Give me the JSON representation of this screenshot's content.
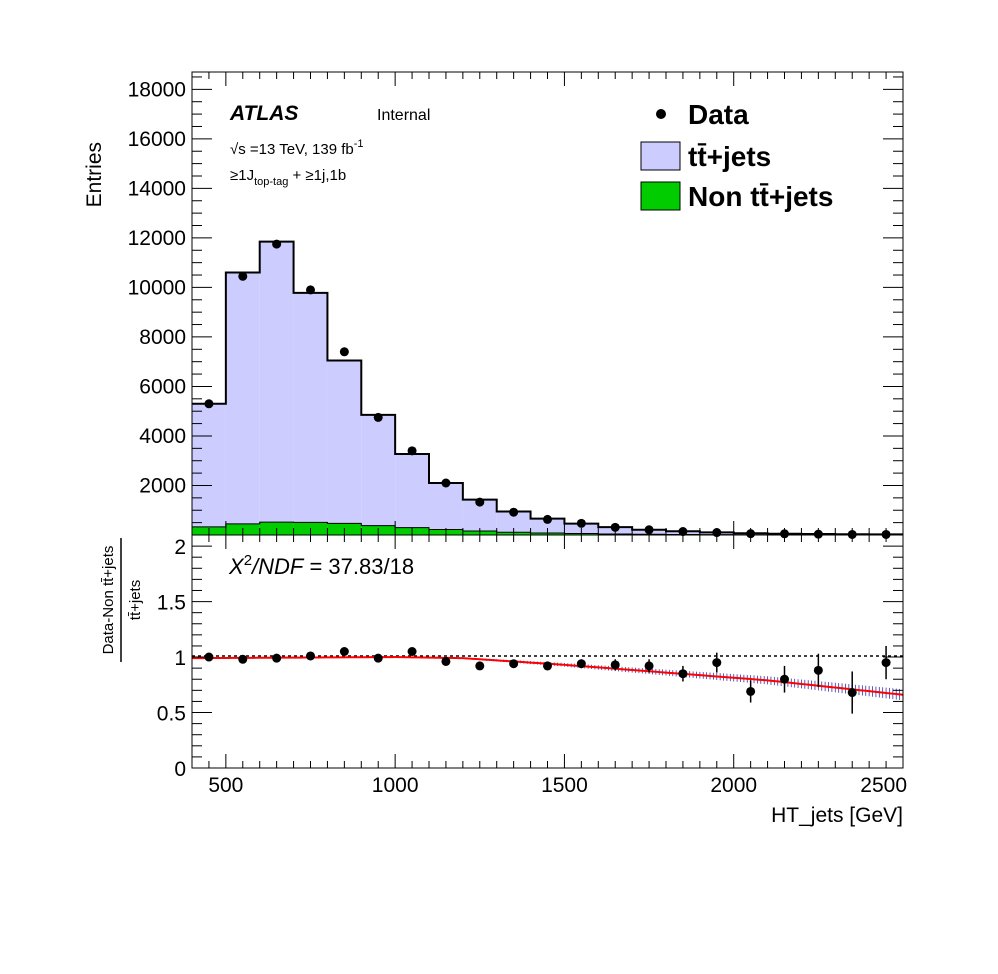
{
  "chart_data": [
    {
      "type": "bar",
      "panel": "main",
      "ylabel": "Entries",
      "xlim": [
        400,
        2500
      ],
      "ylim": [
        0,
        18700
      ],
      "y_ticks": [
        2000,
        4000,
        6000,
        8000,
        10000,
        12000,
        14000,
        16000,
        18000
      ],
      "bin_edges": [
        400,
        500,
        600,
        700,
        800,
        900,
        1000,
        1100,
        1200,
        1300,
        1400,
        1500,
        1600,
        1700,
        1800,
        1900,
        2000,
        2100,
        2200,
        2300,
        2400,
        2500
      ],
      "series": [
        {
          "name": "Non tt̅+jets",
          "kind": "stacked",
          "color": "#00cc00",
          "values": [
            330,
            450,
            520,
            510,
            470,
            380,
            300,
            220,
            160,
            110,
            80,
            60,
            40,
            30,
            20,
            15,
            10,
            8,
            6,
            5,
            4
          ]
        },
        {
          "name": "tt̅+jets",
          "kind": "stacked",
          "color": "#ccccff",
          "values": [
            4970,
            10150,
            11330,
            9270,
            6580,
            4470,
            2970,
            1880,
            1270,
            840,
            580,
            400,
            280,
            180,
            130,
            90,
            60,
            45,
            32,
            25,
            20
          ]
        },
        {
          "name": "Data",
          "kind": "points",
          "color": "#000000",
          "x": [
            450,
            550,
            650,
            750,
            850,
            950,
            1050,
            1150,
            1250,
            1350,
            1450,
            1550,
            1650,
            1750,
            1850,
            1950,
            2050,
            2150,
            2250,
            2350,
            2450
          ],
          "values": [
            5300,
            10450,
            11750,
            9900,
            7400,
            4750,
            3400,
            2100,
            1330,
            920,
            630,
            470,
            310,
            210,
            140,
            100,
            55,
            50,
            35,
            22,
            22
          ]
        }
      ],
      "annotations": {
        "atlas": "ATLAS",
        "internal": "Internal",
        "energy_prefix": "√s =13 TeV, 139 fb",
        "energy_sup": "-1",
        "selection_main": "≥1J",
        "selection_sub": "top-tag",
        "selection_rest": " + ≥1j,1b"
      },
      "legend": {
        "placement": "top-right",
        "entries": [
          "Data",
          "tt̄+jets",
          "Non tt̄+jets"
        ]
      }
    },
    {
      "type": "scatter",
      "panel": "ratio",
      "xlabel": "HT_jets [GeV]",
      "ylabel_num": "Data-Non tt̄+jets",
      "ylabel_den": "tt̄+jets",
      "xlim": [
        400,
        2500
      ],
      "ylim": [
        0,
        2.1
      ],
      "x_ticks": [
        500,
        1000,
        1500,
        2000,
        2500
      ],
      "y_ticks": [
        0,
        0.5,
        1,
        1.5,
        2
      ],
      "reference_line": 1,
      "fit_text_x": "X",
      "fit_text_sup": "2",
      "fit_text_rest": "/NDF",
      "fit_text_value": " = 37.83/18",
      "x": [
        450,
        550,
        650,
        750,
        850,
        950,
        1050,
        1150,
        1250,
        1350,
        1450,
        1550,
        1650,
        1750,
        1850,
        1950,
        2050,
        2150,
        2250,
        2350,
        2450
      ],
      "values": [
        1.0,
        0.98,
        0.99,
        1.01,
        1.05,
        0.99,
        1.05,
        0.96,
        0.92,
        0.94,
        0.92,
        0.94,
        0.93,
        0.92,
        0.85,
        0.95,
        0.69,
        0.8,
        0.88,
        0.68,
        0.95
      ],
      "errors": [
        0.02,
        0.01,
        0.01,
        0.01,
        0.01,
        0.02,
        0.02,
        0.02,
        0.03,
        0.03,
        0.04,
        0.04,
        0.05,
        0.06,
        0.07,
        0.09,
        0.1,
        0.12,
        0.15,
        0.19,
        0.15
      ],
      "fit": {
        "color": "#ff0000",
        "band_color": "#3333aa",
        "x": [
          400,
          1000,
          1200,
          1500,
          1800,
          2100,
          2500
        ],
        "values": [
          0.99,
          1.0,
          0.99,
          0.93,
          0.86,
          0.79,
          0.66
        ]
      }
    }
  ]
}
